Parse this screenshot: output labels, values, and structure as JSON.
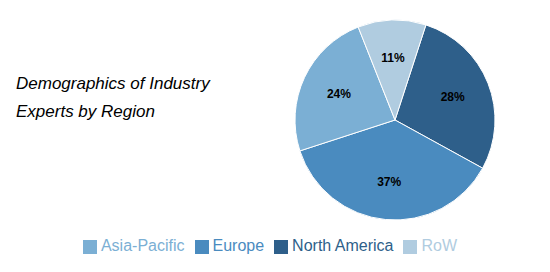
{
  "chart_data": {
    "type": "pie",
    "title": [
      "Demographics of Industry",
      "Experts by Region"
    ],
    "categories": [
      "North America",
      "Europe",
      "Asia-Pacific",
      "RoW"
    ],
    "values": [
      28,
      37,
      24,
      11
    ],
    "value_labels": [
      "28%",
      "37%",
      "24%",
      "11%"
    ],
    "data_labels": true,
    "colors": [
      "#2E5F8A",
      "#4A8BBF",
      "#7BAFD4",
      "#B0CCE0"
    ],
    "legend": "bottom"
  }
}
